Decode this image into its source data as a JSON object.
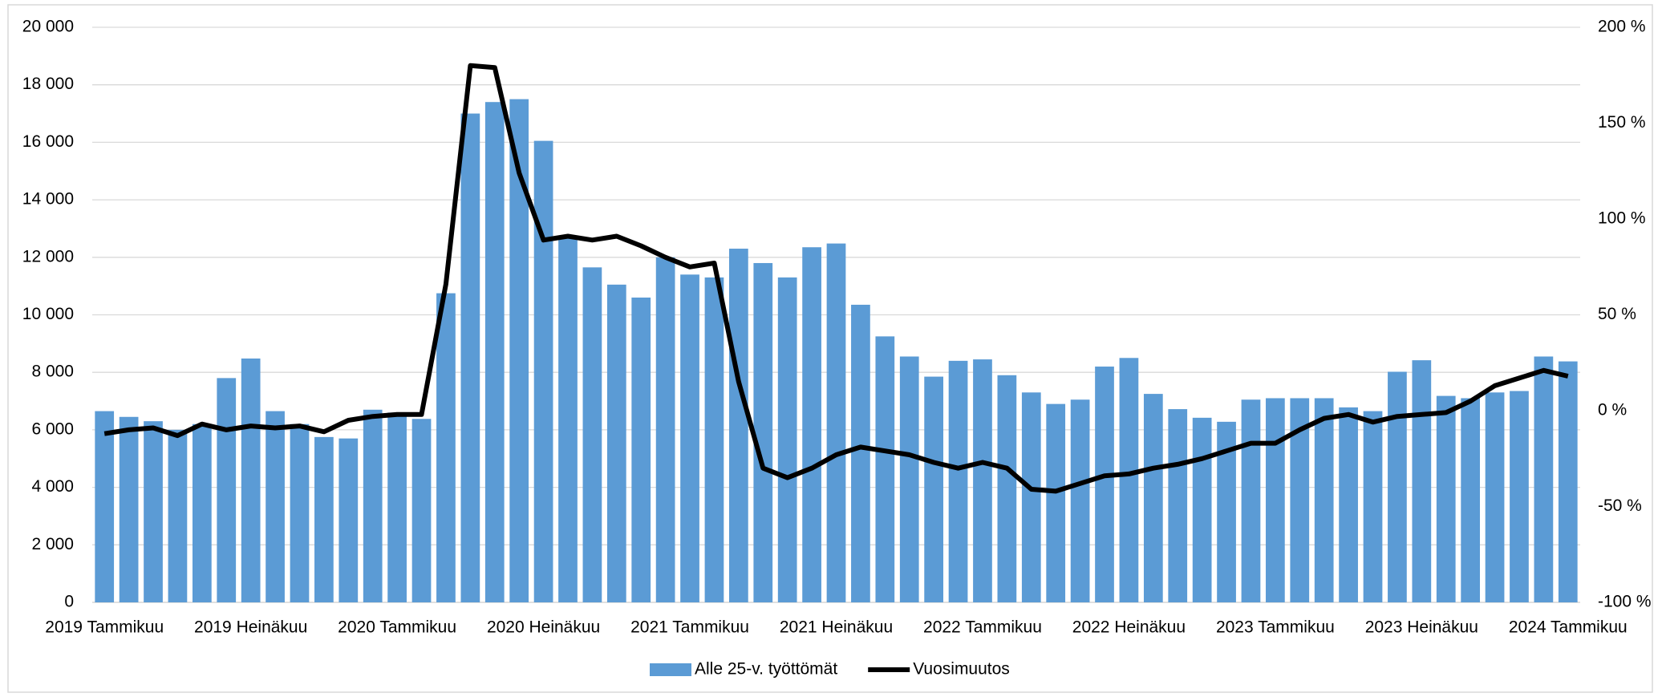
{
  "chart_data": {
    "type": "bar-line",
    "categories": [
      "2019 Tammikuu",
      null,
      null,
      null,
      null,
      null,
      "2019 Heinäkuu",
      null,
      null,
      null,
      null,
      null,
      "2020 Tammikuu",
      null,
      null,
      null,
      null,
      null,
      "2020 Heinäkuu",
      null,
      null,
      null,
      null,
      null,
      "2021 Tammikuu",
      null,
      null,
      null,
      null,
      null,
      "2021 Heinäkuu",
      null,
      null,
      null,
      null,
      null,
      "2022 Tammikuu",
      null,
      null,
      null,
      null,
      null,
      "2022 Heinäkuu",
      null,
      null,
      null,
      null,
      null,
      "2023 Tammikuu",
      null,
      null,
      null,
      null,
      null,
      "2023 Heinäkuu",
      null,
      null,
      null,
      null,
      null,
      "2024 Tammikuu"
    ],
    "series": [
      {
        "name": "Alle 25-v. työttömät",
        "type": "bar",
        "color": "#5b9bd5",
        "values": [
          6650,
          6450,
          6300,
          6000,
          6200,
          7800,
          8480,
          6650,
          6200,
          5750,
          5700,
          6700,
          6600,
          6380,
          10750,
          17000,
          17400,
          17500,
          16050,
          12700,
          11650,
          11050,
          10600,
          12000,
          11400,
          11300,
          12300,
          11800,
          11300,
          12350,
          12480,
          10350,
          9250,
          8550,
          7850,
          8400,
          8450,
          7900,
          7300,
          6900,
          7050,
          8200,
          8500,
          7250,
          6720,
          6420,
          6280,
          7050,
          7100,
          7100,
          7100,
          6780,
          6650,
          8020,
          8420,
          7180,
          7100,
          7300,
          7350,
          8550,
          8380
        ]
      },
      {
        "name": "Vuosimuutos",
        "type": "line",
        "axis": "y2",
        "color": "#000000",
        "values": [
          -12,
          -10,
          -9,
          -13,
          -7,
          -10,
          -8,
          -9,
          -8,
          -11,
          -5,
          -3,
          -2,
          -2,
          66,
          180,
          179,
          124,
          89,
          91,
          89,
          91,
          86,
          80,
          75,
          77,
          15,
          -30,
          -35,
          -30,
          -23,
          -19,
          -21,
          -23,
          -27,
          -30,
          -27,
          -30,
          -41,
          -42,
          -38,
          -34,
          -33,
          -30,
          -28,
          -25,
          -21,
          -17,
          -17,
          -10,
          -4,
          -2,
          -6,
          -3,
          -2,
          -1,
          5,
          13,
          17,
          21,
          18
        ]
      }
    ],
    "ylim": [
      0,
      20000
    ],
    "yticks": [
      0,
      {
        "value": 2000,
        "label": "2 000"
      },
      {
        "value": 4000,
        "label": "4 000"
      },
      {
        "value": 6000,
        "label": "6 000"
      },
      {
        "value": 8000,
        "label": "8 000"
      },
      {
        "value": 10000,
        "label": "10 000"
      },
      {
        "value": 12000,
        "label": "12 000"
      },
      {
        "value": 14000,
        "label": "14 000"
      },
      {
        "value": 16000,
        "label": "16 000"
      },
      {
        "value": 18000,
        "label": "18 000"
      },
      {
        "value": 20000,
        "label": "20 000"
      }
    ],
    "y2lim": [
      -100,
      200
    ],
    "y2ticks": [
      {
        "value": -100,
        "label": "-100 %"
      },
      {
        "value": -50,
        "label": "-50 %"
      },
      {
        "value": 0,
        "label": "0 %"
      },
      {
        "value": 50,
        "label": "50 %"
      },
      {
        "value": 100,
        "label": "100 %"
      },
      {
        "value": 150,
        "label": "150 %"
      },
      {
        "value": 200,
        "label": "200 %"
      }
    ],
    "grid": true,
    "legend": "bottom"
  }
}
